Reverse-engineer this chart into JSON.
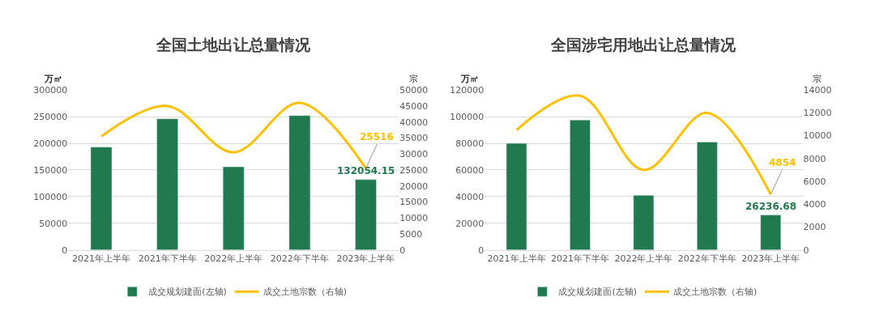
{
  "chart_data": [
    {
      "type": "bar",
      "title": "全国土地出让总量情况",
      "ylabel": "万㎡",
      "y2label": "宗",
      "categories": [
        "2021年上半年",
        "2021年下半年",
        "2022年上半年",
        "2022年下半年",
        "2023年上半年"
      ],
      "series": [
        {
          "name": "成交规划建面(左轴)",
          "color": "#217a4f",
          "values": [
            193000,
            246000,
            156000,
            252000,
            132054.15
          ],
          "value_labels": [
            null,
            null,
            null,
            null,
            "132054.15"
          ]
        },
        {
          "name": "成交土地宗数（右轴)",
          "type": "line",
          "axis": "y2",
          "color": "#ffc000",
          "values": [
            35500,
            45000,
            30500,
            46000,
            25516
          ],
          "value_labels": [
            null,
            null,
            null,
            null,
            "25516"
          ]
        }
      ],
      "ylim": [
        0,
        300000
      ],
      "yticks": [
        0,
        50000,
        100000,
        150000,
        200000,
        250000,
        300000
      ],
      "y2lim": [
        0,
        50000
      ],
      "y2ticks": [
        0,
        5000,
        10000,
        15000,
        20000,
        25000,
        30000,
        35000,
        40000,
        45000,
        50000
      ],
      "grid": "y",
      "legend": "bottom",
      "marker": "none"
    },
    {
      "type": "bar",
      "title": "全国涉宅用地出让总量情况",
      "ylabel": "万㎡",
      "y2label": "宗",
      "categories": [
        "2021年上半年",
        "2021年下半年",
        "2022年上半年",
        "2022年下半年",
        "2023年上半年"
      ],
      "series": [
        {
          "name": "成交规划建面(左轴)",
          "color": "#217a4f",
          "values": [
            80000,
            97500,
            41000,
            81000,
            26236.68
          ],
          "value_labels": [
            null,
            null,
            null,
            null,
            "26236.68"
          ]
        },
        {
          "name": "成交土地宗数（右轴)",
          "type": "line",
          "axis": "y2",
          "color": "#ffc000",
          "values": [
            10500,
            13500,
            7000,
            12000,
            4854
          ],
          "value_labels": [
            null,
            null,
            null,
            null,
            "4854"
          ]
        }
      ],
      "ylim": [
        0,
        120000
      ],
      "yticks": [
        0,
        20000,
        40000,
        60000,
        80000,
        100000,
        120000
      ],
      "y2lim": [
        0,
        14000
      ],
      "y2ticks": [
        0,
        2000,
        4000,
        6000,
        8000,
        10000,
        12000,
        14000
      ],
      "grid": "y",
      "legend": "bottom",
      "marker": "none"
    }
  ]
}
